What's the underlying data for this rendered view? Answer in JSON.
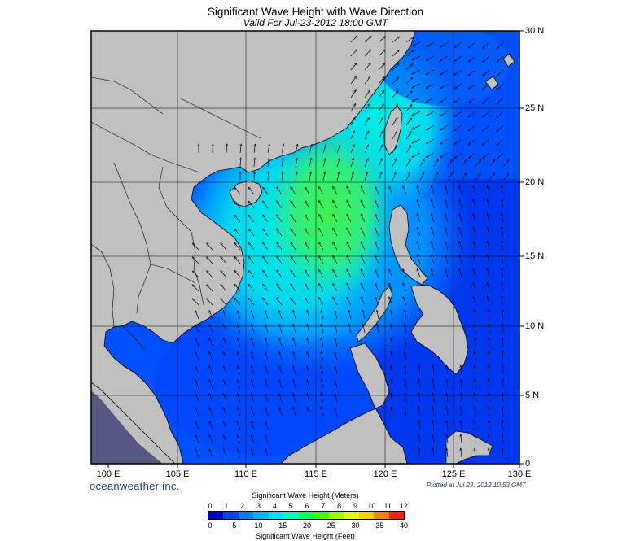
{
  "title": "Significant Wave Height with Wave Direction",
  "subtitle": "Valid For Jul-23-2012 18:00 GMT",
  "brand": "oceanweather inc.",
  "plotted": "Plotted at Jul 23, 2012 10:53 GMT",
  "lat_labels": [
    "30 N",
    "25 N",
    "20 N",
    "15 N",
    "10 N",
    "5 N",
    "0"
  ],
  "lon_labels": [
    "100 E",
    "105 E",
    "110 E",
    "115 E",
    "120 E",
    "125 E",
    "130 E"
  ],
  "colorbar": {
    "meters_title": "Significant Wave Height (Meters)",
    "feet_title": "Significant Wave Height (Feet)",
    "meters_ticks": [
      "0",
      "1",
      "2",
      "3",
      "4",
      "5",
      "6",
      "7",
      "8",
      "9",
      "10",
      "11",
      "12"
    ],
    "feet_ticks": [
      "0",
      "5",
      "10",
      "15",
      "20",
      "25",
      "30",
      "35",
      "40"
    ],
    "colors": [
      "#0000c8",
      "#0040ff",
      "#0080ff",
      "#00b4ff",
      "#00e0ff",
      "#00ffc0",
      "#00ff60",
      "#40ff00",
      "#a0ff00",
      "#e0ff00",
      "#ffd000",
      "#ff8000",
      "#ff2000"
    ]
  },
  "colors": {
    "land": "#c0c0c0",
    "deep_blue": "#0028e0",
    "mid_blue": "#0070ff",
    "light_blue": "#00b8ff",
    "cyan": "#00f0e8",
    "green": "#38f070"
  }
}
